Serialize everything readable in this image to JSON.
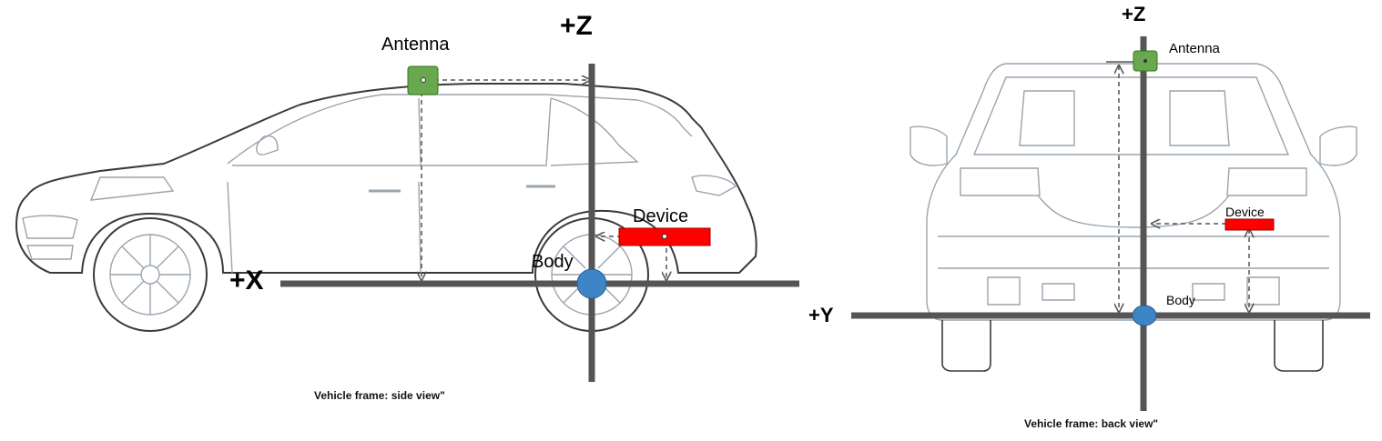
{
  "side_view": {
    "axis_x_label": "+X",
    "axis_z_label": "+Z",
    "antenna_label": "Antenna",
    "device_label": "Device",
    "body_label": "Body",
    "caption": "Vehicle frame: side view\""
  },
  "back_view": {
    "axis_y_label": "+Y",
    "axis_z_label": "+Z",
    "antenna_label": "Antenna",
    "device_label": "Device",
    "body_label": "Body",
    "caption": "Vehicle frame: back view\""
  },
  "colors": {
    "axis": "#555555",
    "antenna": "#6aa84f",
    "device": "#ff0000",
    "body": "#3d85c6",
    "vehicle_outline": "#9aa4ad",
    "vehicle_outline_dark": "#3a3a3a"
  }
}
